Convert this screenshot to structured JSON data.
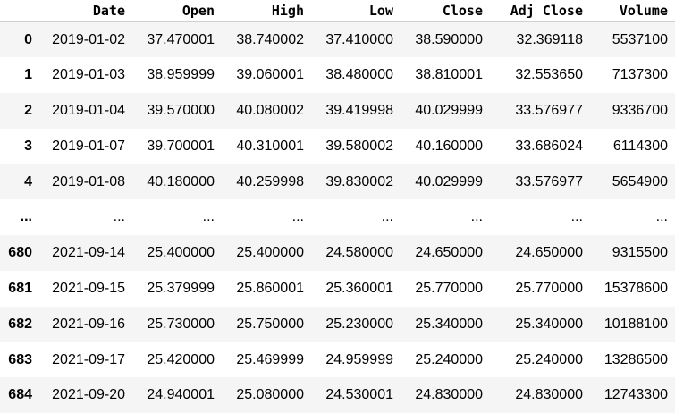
{
  "table": {
    "columns": [
      "",
      "Date",
      "Open",
      "High",
      "Low",
      "Close",
      "Adj Close",
      "Volume"
    ],
    "rows": [
      {
        "index": "0",
        "cells": [
          "2019-01-02",
          "37.470001",
          "38.740002",
          "37.410000",
          "38.590000",
          "32.369118",
          "5537100"
        ]
      },
      {
        "index": "1",
        "cells": [
          "2019-01-03",
          "38.959999",
          "39.060001",
          "38.480000",
          "38.810001",
          "32.553650",
          "7137300"
        ]
      },
      {
        "index": "2",
        "cells": [
          "2019-01-04",
          "39.570000",
          "40.080002",
          "39.419998",
          "40.029999",
          "33.576977",
          "9336700"
        ]
      },
      {
        "index": "3",
        "cells": [
          "2019-01-07",
          "39.700001",
          "40.310001",
          "39.580002",
          "40.160000",
          "33.686024",
          "6114300"
        ]
      },
      {
        "index": "4",
        "cells": [
          "2019-01-08",
          "40.180000",
          "40.259998",
          "39.830002",
          "40.029999",
          "33.576977",
          "5654900"
        ]
      },
      {
        "index": "...",
        "cells": [
          "...",
          "...",
          "...",
          "...",
          "...",
          "...",
          "..."
        ]
      },
      {
        "index": "680",
        "cells": [
          "2021-09-14",
          "25.400000",
          "25.400000",
          "24.580000",
          "24.650000",
          "24.650000",
          "9315500"
        ]
      },
      {
        "index": "681",
        "cells": [
          "2021-09-15",
          "25.379999",
          "25.860001",
          "25.360001",
          "25.770000",
          "25.770000",
          "15378600"
        ]
      },
      {
        "index": "682",
        "cells": [
          "2021-09-16",
          "25.730000",
          "25.750000",
          "25.230000",
          "25.340000",
          "25.340000",
          "10188100"
        ]
      },
      {
        "index": "683",
        "cells": [
          "2021-09-17",
          "25.420000",
          "25.469999",
          "24.959999",
          "25.240000",
          "25.240000",
          "13286500"
        ]
      },
      {
        "index": "684",
        "cells": [
          "2021-09-20",
          "24.940001",
          "25.080000",
          "24.530001",
          "24.830000",
          "24.830000",
          "12743300"
        ]
      }
    ]
  }
}
